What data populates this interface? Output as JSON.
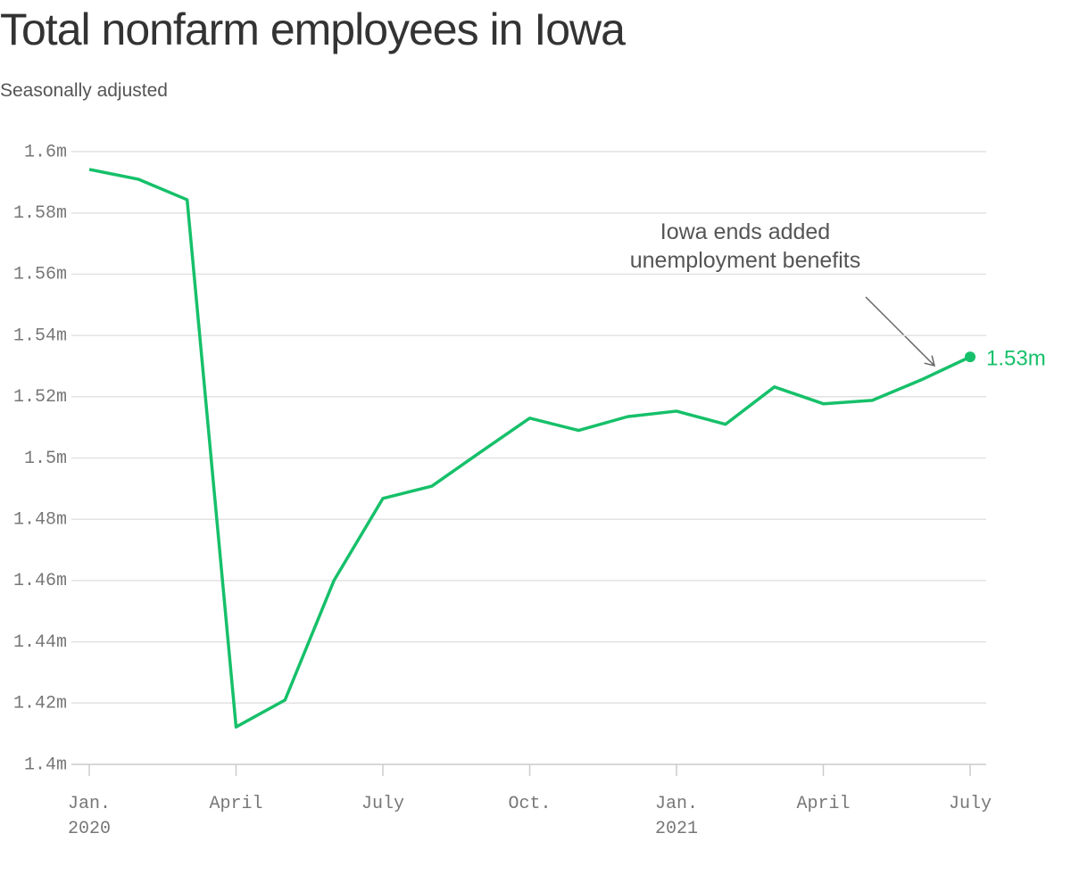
{
  "chart_data": {
    "type": "line",
    "title": "Total nonfarm employees in Iowa",
    "subtitle": "Seasonally adjusted",
    "categories": [
      "Jan.\n2020",
      null,
      null,
      "April",
      null,
      null,
      "July",
      null,
      null,
      "Oct.",
      null,
      null,
      "Jan.\n2021",
      null,
      null,
      "April",
      null,
      null,
      "July"
    ],
    "values": [
      1.5942,
      1.591,
      1.5843,
      1.4122,
      1.421,
      1.46,
      1.4868,
      1.4908,
      1.502,
      1.513,
      1.509,
      1.5135,
      1.5153,
      1.511,
      1.5232,
      1.5177,
      1.5188,
      1.5255,
      1.533
    ],
    "value_labels": [
      null,
      null,
      null,
      null,
      null,
      null,
      null,
      null,
      null,
      null,
      null,
      null,
      null,
      null,
      null,
      null,
      null,
      null,
      "1.53m"
    ],
    "color": "#16c06a",
    "ylim": [
      1.4,
      1.6
    ],
    "yticks": [
      {
        "value": 1.4,
        "label": "1.4m"
      },
      {
        "value": 1.42,
        "label": "1.42m"
      },
      {
        "value": 1.44,
        "label": "1.44m"
      },
      {
        "value": 1.46,
        "label": "1.46m"
      },
      {
        "value": 1.48,
        "label": "1.48m"
      },
      {
        "value": 1.5,
        "label": "1.5m"
      },
      {
        "value": 1.52,
        "label": "1.52m"
      },
      {
        "value": 1.54,
        "label": "1.54m"
      },
      {
        "value": 1.56,
        "label": "1.56m"
      },
      {
        "value": 1.58,
        "label": "1.58m"
      },
      {
        "value": 1.6,
        "label": "1.6m"
      }
    ],
    "grid": true,
    "annotation": "Iowa ends added unemployment benefits"
  }
}
